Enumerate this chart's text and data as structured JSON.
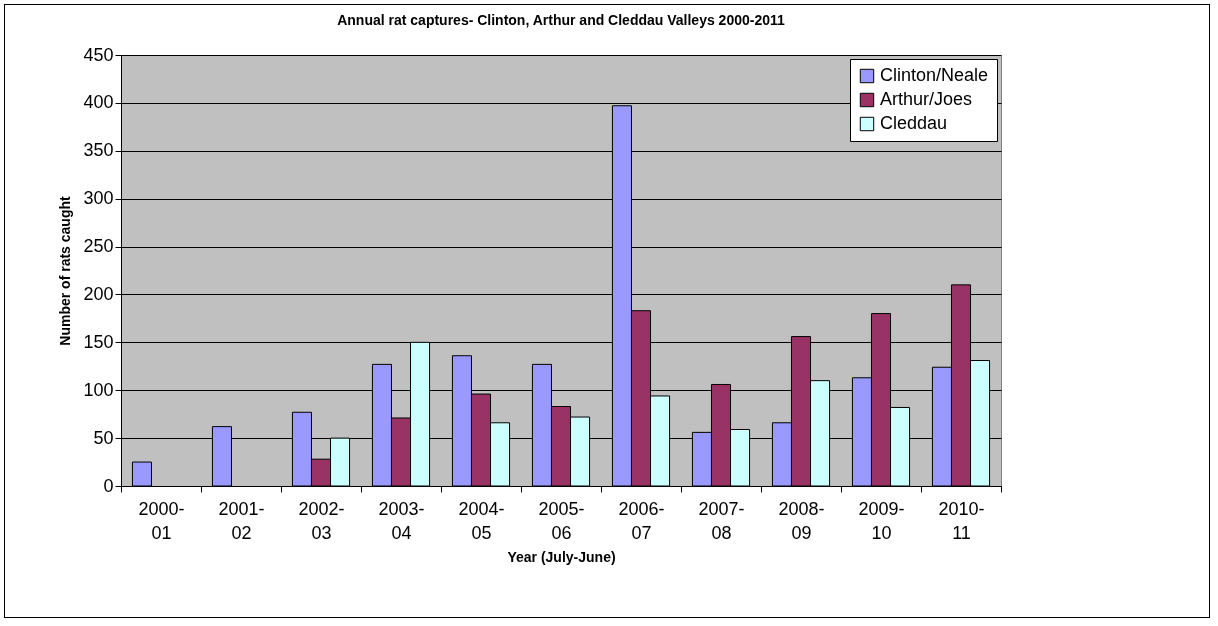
{
  "chart_data": {
    "type": "bar",
    "title": "Annual rat captures- Clinton, Arthur and Cleddau Valleys 2000-2011",
    "xlabel": "Year (July-June)",
    "ylabel": "Number of rats caught",
    "categories": [
      "2000-01",
      "2001-02",
      "2002-03",
      "2003-04",
      "2004-05",
      "2005-06",
      "2006-07",
      "2007-08",
      "2008-09",
      "2009-10",
      "2010-11"
    ],
    "series": [
      {
        "name": "Clinton/Neale",
        "color": "#9999ff",
        "values": [
          25,
          62,
          77,
          127,
          136,
          127,
          397,
          56,
          66,
          113,
          124
        ]
      },
      {
        "name": "Arthur/Joes",
        "color": "#993366",
        "values": [
          null,
          null,
          28,
          71,
          96,
          83,
          183,
          106,
          156,
          180,
          210
        ]
      },
      {
        "name": "Cleddau",
        "color": "#ccffff",
        "values": [
          null,
          null,
          50,
          150,
          66,
          72,
          94,
          59,
          110,
          82,
          131
        ]
      }
    ],
    "ylim": [
      0,
      450
    ],
    "yticks": [
      0,
      50,
      100,
      150,
      200,
      250,
      300,
      350,
      400,
      450
    ],
    "grid": "y",
    "legend": "top right"
  }
}
